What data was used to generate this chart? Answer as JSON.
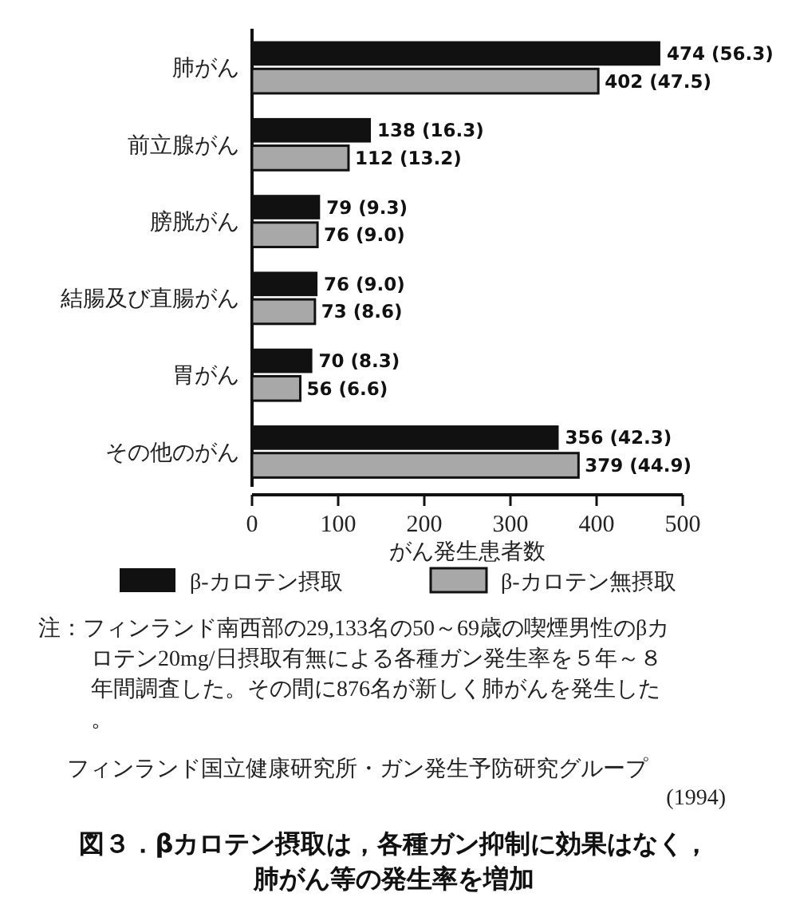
{
  "chart_data": {
    "type": "bar",
    "orientation": "horizontal",
    "title": "図３．βカロテン摂取は，各種ガン抑制に効果はなく，肺がん等の発生率を増加",
    "xlabel": "がん発生患者数",
    "categories": [
      "肺がん",
      "前立腺がん",
      "膀胱がん",
      "結腸及び直腸がん",
      "胃がん",
      "その他のがん"
    ],
    "series": [
      {
        "name": "β-カロテン摂取",
        "color": "#111111",
        "values": [
          474,
          138,
          79,
          76,
          70,
          356
        ],
        "value_labels": [
          "474 (56.3)",
          "138 (16.3)",
          "79 (9.3)",
          "76 (9.0)",
          "70 (8.3)",
          "356 (42.3)"
        ]
      },
      {
        "name": "β-カロテン無摂取",
        "color": "#a8a8a8",
        "values": [
          402,
          112,
          76,
          73,
          56,
          379
        ],
        "value_labels": [
          "402 (47.5)",
          "112 (13.2)",
          "76 (9.0)",
          "73 (8.6)",
          "56 (6.6)",
          "379 (44.9)"
        ]
      }
    ],
    "xlim": [
      0,
      500
    ],
    "xticks": [
      0,
      100,
      200,
      300,
      400,
      500
    ],
    "legend": "bottom",
    "annotations": [
      "注：フィンランド南西部の29,133名の50～69歳の喫煙男性のβカロテン20mg/日摂取有無による各種ガン発生率を５年～８年間調査した。その間に876名が新しく肺がんを発生した。",
      "フィンランド国立健康研究所・ガン発生予防研究グループ (1994)"
    ]
  }
}
